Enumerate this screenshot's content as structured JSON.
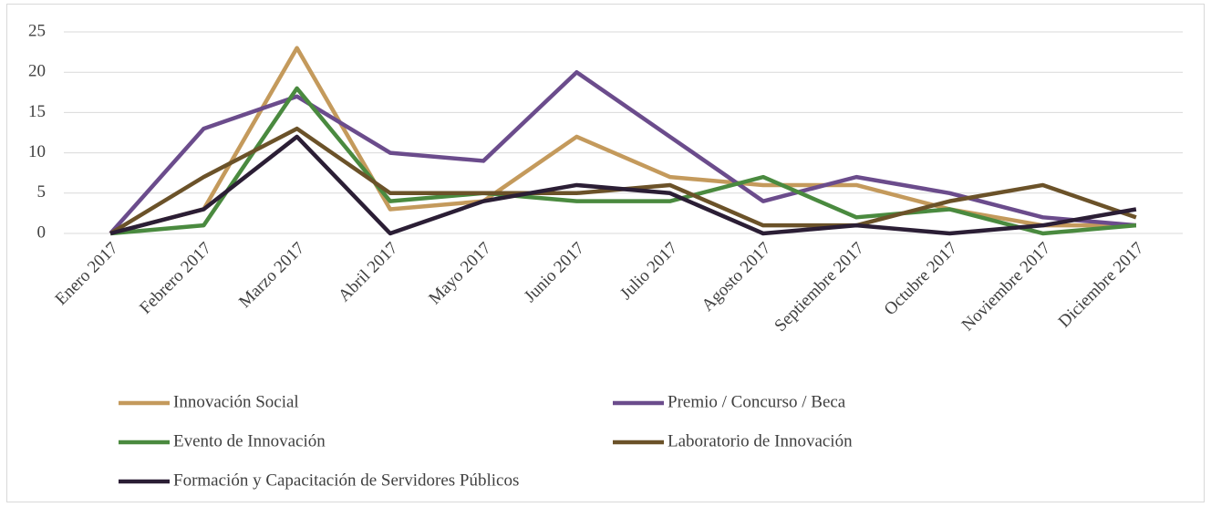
{
  "chart_data": {
    "type": "line",
    "categories": [
      "Enero 2017",
      "Febrero 2017",
      "Marzo 2017",
      "Abril 2017",
      "Mayo 2017",
      "Junio 2017",
      "Julio 2017",
      "Agosto 2017",
      "Septiembre 2017",
      "Octubre 2017",
      "Noviembre 2017",
      "Diciembre 2017"
    ],
    "series": [
      {
        "name": "Innovación Social",
        "color": "#c49a5c",
        "values": [
          0,
          3,
          23,
          3,
          4,
          12,
          7,
          6,
          6,
          3,
          1,
          1
        ]
      },
      {
        "name": "Premio / Concurso / Beca",
        "color": "#6b4c8c",
        "values": [
          0,
          13,
          17,
          10,
          9,
          20,
          12,
          4,
          7,
          5,
          2,
          1
        ]
      },
      {
        "name": "Evento de Innovación",
        "color": "#4a8a3f",
        "values": [
          0,
          1,
          18,
          4,
          5,
          4,
          4,
          7,
          2,
          3,
          0,
          1
        ]
      },
      {
        "name": "Laboratorio de Innovación",
        "color": "#6b5229",
        "values": [
          0,
          7,
          13,
          5,
          5,
          5,
          6,
          1,
          1,
          4,
          6,
          2
        ]
      },
      {
        "name": "Formación y Capacitación de Servidores Públicos",
        "color": "#2b1e35",
        "values": [
          0,
          3,
          12,
          0,
          4,
          6,
          5,
          0,
          1,
          0,
          1,
          3
        ]
      }
    ],
    "ylim": [
      0,
      25
    ],
    "yticks": [
      0,
      5,
      10,
      15,
      20,
      25
    ],
    "grid": true,
    "legend": "bottom"
  }
}
